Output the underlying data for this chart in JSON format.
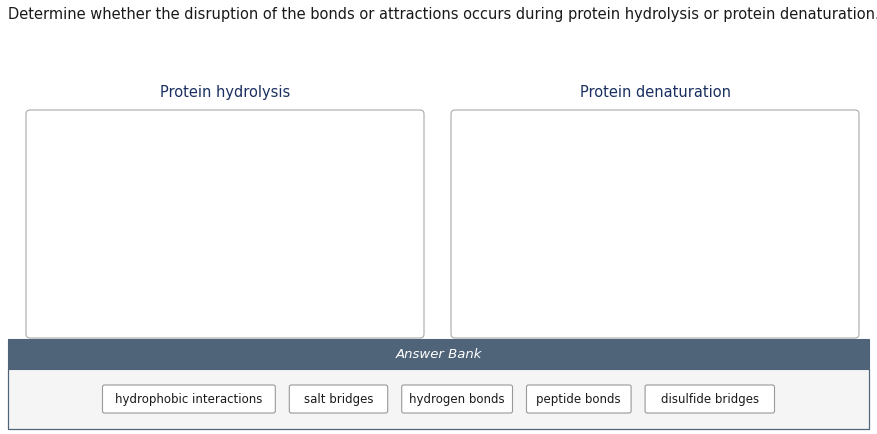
{
  "question": "Determine whether the disruption of the bonds or attractions occurs during protein hydrolysis or protein denaturation.",
  "question_fontsize": 10.5,
  "question_color": "#1a1a1a",
  "box1_title": "Protein hydrolysis",
  "box2_title": "Protein denaturation",
  "title_fontsize": 10.5,
  "title_color": "#1a3060",
  "answer_bank_label": "Answer Bank",
  "answer_bank_bg": "#4f6478",
  "answer_bank_label_color": "#ffffff",
  "answer_bank_label_fontsize": 9.5,
  "answer_items": [
    "hydrophobic interactions",
    "salt bridges",
    "hydrogen bonds",
    "peptide bonds",
    "disulfide bridges"
  ],
  "answer_item_fontsize": 8.5,
  "answer_item_color": "#1a1a1a",
  "answer_item_bg": "#ffffff",
  "answer_item_border": "#999999",
  "bg_color": "#ffffff",
  "box_border_color": "#aaaaaa",
  "answer_section_border": "#4f6478",
  "answer_section_bg": "#f5f5f5"
}
